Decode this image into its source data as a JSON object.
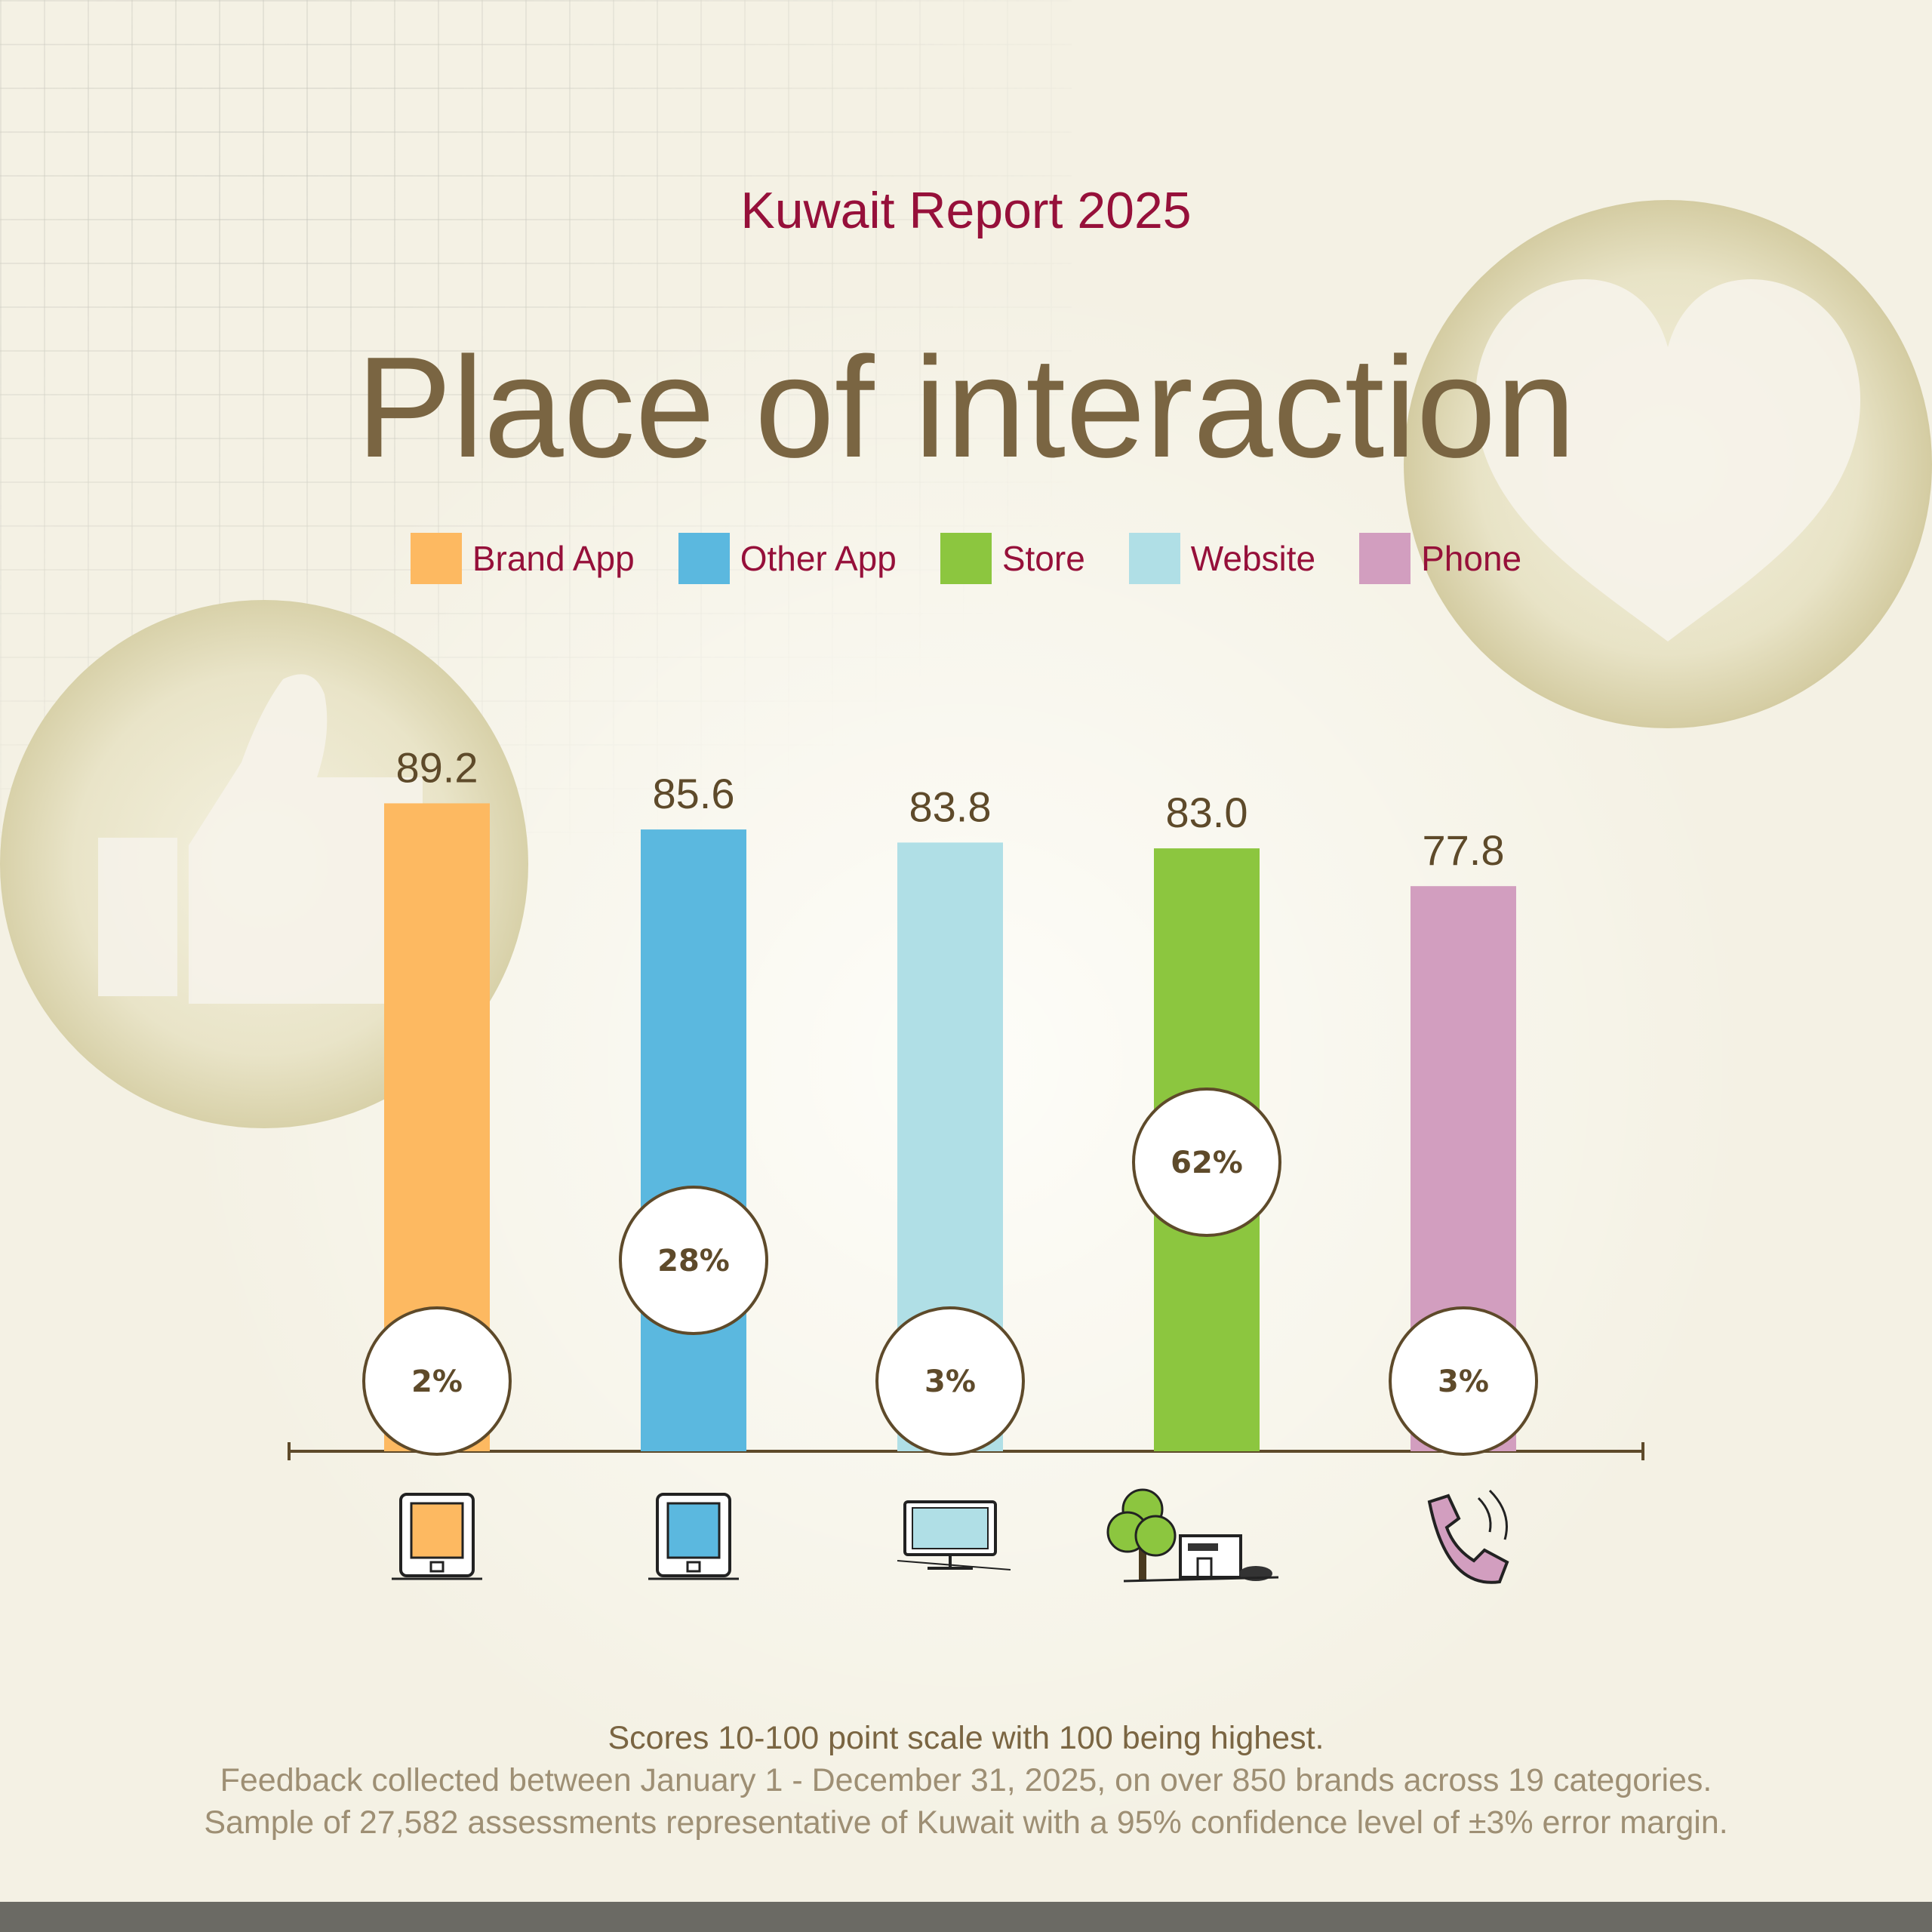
{
  "report_label": "Kuwait Report 2025",
  "chart_data": {
    "type": "bar",
    "title": "Place of interaction",
    "categories": [
      "Brand App",
      "Other App",
      "Website",
      "Store",
      "Phone"
    ],
    "values": [
      89.2,
      85.6,
      83.8,
      83.0,
      77.8
    ],
    "value_labels": [
      "89.2",
      "85.6",
      "83.8",
      "83.0",
      "77.8"
    ],
    "shares": [
      "2%",
      "28%",
      "3%",
      "62%",
      "3%"
    ],
    "colors": [
      "#fdb961",
      "#5bb8df",
      "#b0dfe6",
      "#8cc63f",
      "#d29ebf"
    ],
    "icons": [
      "brand-app-phone-icon",
      "other-app-phone-icon",
      "website-monitor-icon",
      "store-building-icon",
      "phone-handset-icon"
    ],
    "ylim": [
      0,
      100
    ],
    "grid": false,
    "xlabel": "",
    "ylabel": ""
  },
  "legend": [
    {
      "label": "Brand App",
      "color": "#fdb961"
    },
    {
      "label": "Other App",
      "color": "#5bb8df"
    },
    {
      "label": "Store",
      "color": "#8cc63f"
    },
    {
      "label": "Website",
      "color": "#b0dfe6"
    },
    {
      "label": "Phone",
      "color": "#d29ebf"
    }
  ],
  "notes": {
    "line1": "Scores 10-100 point scale with 100 being highest.",
    "line2": "Feedback collected between January 1 - December 31, 2025, on over 850 brands across 19 categories.",
    "line3": "Sample of 27,582 assessments representative of Kuwait with a 95% confidence level of ±3% error margin."
  },
  "decorations": {
    "left_badge_icon": "thumbs-up-icon",
    "right_badge_icon": "heart-icon"
  }
}
